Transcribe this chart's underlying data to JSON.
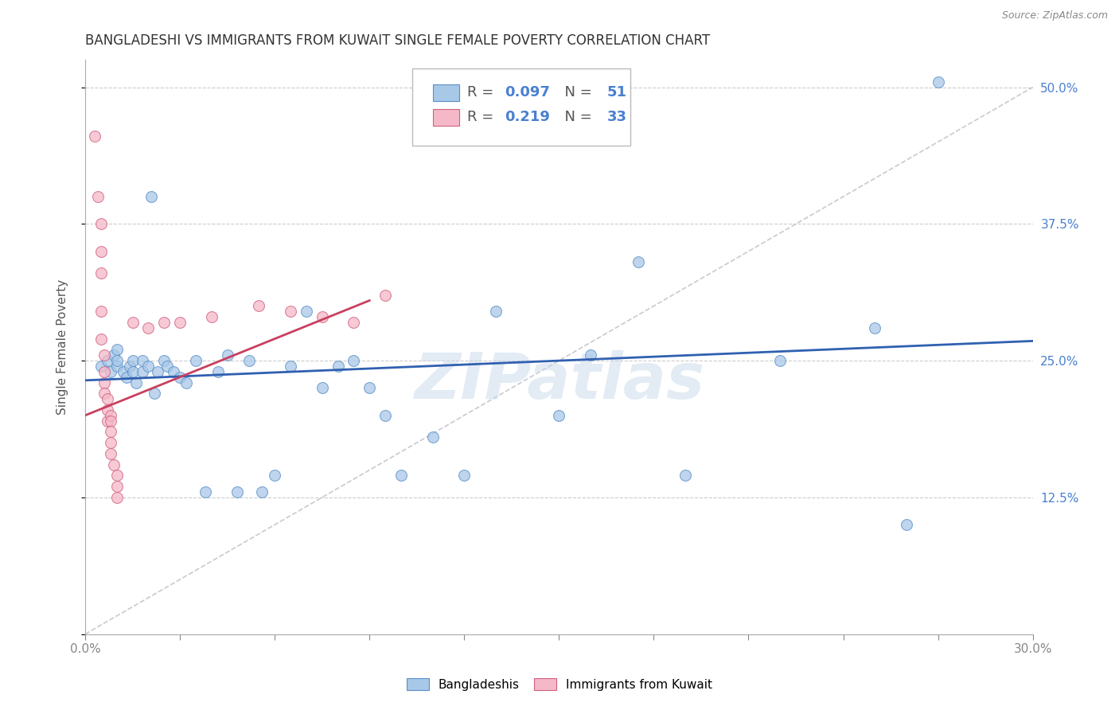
{
  "title": "BANGLADESHI VS IMMIGRANTS FROM KUWAIT SINGLE FEMALE POVERTY CORRELATION CHART",
  "source": "Source: ZipAtlas.com",
  "ylabel_label": "Single Female Poverty",
  "x_min": 0.0,
  "x_max": 0.3,
  "y_min": 0.0,
  "y_max": 0.525,
  "x_ticks": [
    0.0,
    0.03,
    0.06,
    0.09,
    0.12,
    0.15,
    0.18,
    0.21,
    0.24,
    0.27,
    0.3
  ],
  "y_ticks": [
    0.0,
    0.125,
    0.25,
    0.375,
    0.5
  ],
  "right_y_tick_labels": [
    "",
    "12.5%",
    "25.0%",
    "37.5%",
    "50.0%"
  ],
  "legend_blue_r": "0.097",
  "legend_blue_n": "51",
  "legend_pink_r": "0.219",
  "legend_pink_n": "33",
  "legend_blue_label": "Bangladeshis",
  "legend_pink_label": "Immigrants from Kuwait",
  "blue_scatter_color": "#a8c8e8",
  "blue_edge_color": "#5a8fc8",
  "pink_scatter_color": "#f5b8c8",
  "pink_edge_color": "#d06080",
  "blue_line_color": "#3060b0",
  "pink_line_color": "#c84060",
  "ref_line_color": "#c0c0c8",
  "watermark": "ZIPatlas",
  "watermark_color": "#c8d8ea",
  "blue_scatter_x": [
    0.005,
    0.007,
    0.008,
    0.009,
    0.01,
    0.01,
    0.01,
    0.012,
    0.013,
    0.014,
    0.015,
    0.015,
    0.016,
    0.018,
    0.018,
    0.02,
    0.021,
    0.022,
    0.023,
    0.025,
    0.026,
    0.028,
    0.03,
    0.032,
    0.035,
    0.038,
    0.042,
    0.045,
    0.048,
    0.052,
    0.056,
    0.06,
    0.065,
    0.07,
    0.075,
    0.08,
    0.085,
    0.09,
    0.095,
    0.1,
    0.11,
    0.12,
    0.13,
    0.15,
    0.16,
    0.175,
    0.19,
    0.22,
    0.25,
    0.26,
    0.27
  ],
  "blue_scatter_y": [
    0.245,
    0.25,
    0.24,
    0.255,
    0.26,
    0.245,
    0.25,
    0.24,
    0.235,
    0.245,
    0.25,
    0.24,
    0.23,
    0.25,
    0.24,
    0.245,
    0.4,
    0.22,
    0.24,
    0.25,
    0.245,
    0.24,
    0.235,
    0.23,
    0.25,
    0.13,
    0.24,
    0.255,
    0.13,
    0.25,
    0.13,
    0.145,
    0.245,
    0.295,
    0.225,
    0.245,
    0.25,
    0.225,
    0.2,
    0.145,
    0.18,
    0.145,
    0.295,
    0.2,
    0.255,
    0.34,
    0.145,
    0.25,
    0.28,
    0.1,
    0.505
  ],
  "pink_scatter_x": [
    0.003,
    0.004,
    0.005,
    0.005,
    0.005,
    0.005,
    0.005,
    0.006,
    0.006,
    0.006,
    0.006,
    0.007,
    0.007,
    0.007,
    0.008,
    0.008,
    0.008,
    0.008,
    0.008,
    0.009,
    0.01,
    0.01,
    0.01,
    0.015,
    0.02,
    0.025,
    0.03,
    0.04,
    0.055,
    0.065,
    0.075,
    0.085,
    0.095
  ],
  "pink_scatter_y": [
    0.455,
    0.4,
    0.375,
    0.35,
    0.33,
    0.295,
    0.27,
    0.255,
    0.24,
    0.23,
    0.22,
    0.215,
    0.205,
    0.195,
    0.2,
    0.195,
    0.185,
    0.175,
    0.165,
    0.155,
    0.145,
    0.135,
    0.125,
    0.285,
    0.28,
    0.285,
    0.285,
    0.29,
    0.3,
    0.295,
    0.29,
    0.285,
    0.31
  ],
  "blue_line_x": [
    0.0,
    0.3
  ],
  "blue_line_y": [
    0.232,
    0.268
  ],
  "pink_line_x": [
    0.0,
    0.09
  ],
  "pink_line_y": [
    0.2,
    0.305
  ],
  "ref_line_x": [
    0.0,
    0.3
  ],
  "ref_line_y": [
    0.0,
    0.5
  ],
  "title_fontsize": 12,
  "axis_label_fontsize": 11,
  "tick_fontsize": 11,
  "legend_fontsize": 13
}
